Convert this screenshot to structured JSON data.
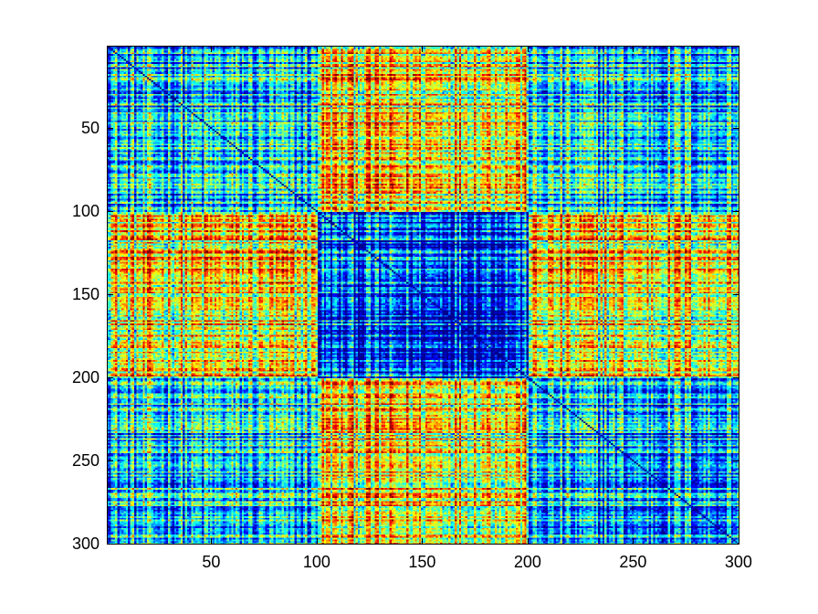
{
  "chart_data": {
    "type": "heatmap",
    "title": "",
    "xlabel": "",
    "ylabel": "",
    "n": 300,
    "xlim": [
      0.5,
      300.5
    ],
    "ylim": [
      0.5,
      300.5
    ],
    "y_direction": "top-to-bottom",
    "x_ticks": [
      50,
      100,
      150,
      200,
      250,
      300
    ],
    "y_ticks": [
      50,
      100,
      150,
      200,
      250,
      300
    ],
    "x_tick_labels": [
      "50",
      "100",
      "150",
      "200",
      "250",
      "300"
    ],
    "y_tick_labels": [
      "50",
      "100",
      "150",
      "200",
      "250",
      "300"
    ],
    "colormap": "jet",
    "colormap_stops": [
      "#00008f",
      "#0000ff",
      "#00ffff",
      "#ffff00",
      "#ff0000",
      "#800000"
    ],
    "clim": [
      0,
      1
    ],
    "grid": false,
    "legend": "none",
    "block_boundaries": [
      1,
      100,
      200,
      300
    ],
    "block_mean_values": [
      [
        0.32,
        0.63,
        0.34
      ],
      [
        0.63,
        0.2,
        0.63
      ],
      [
        0.34,
        0.63,
        0.3
      ]
    ],
    "diagonal_value": 0.0
  }
}
